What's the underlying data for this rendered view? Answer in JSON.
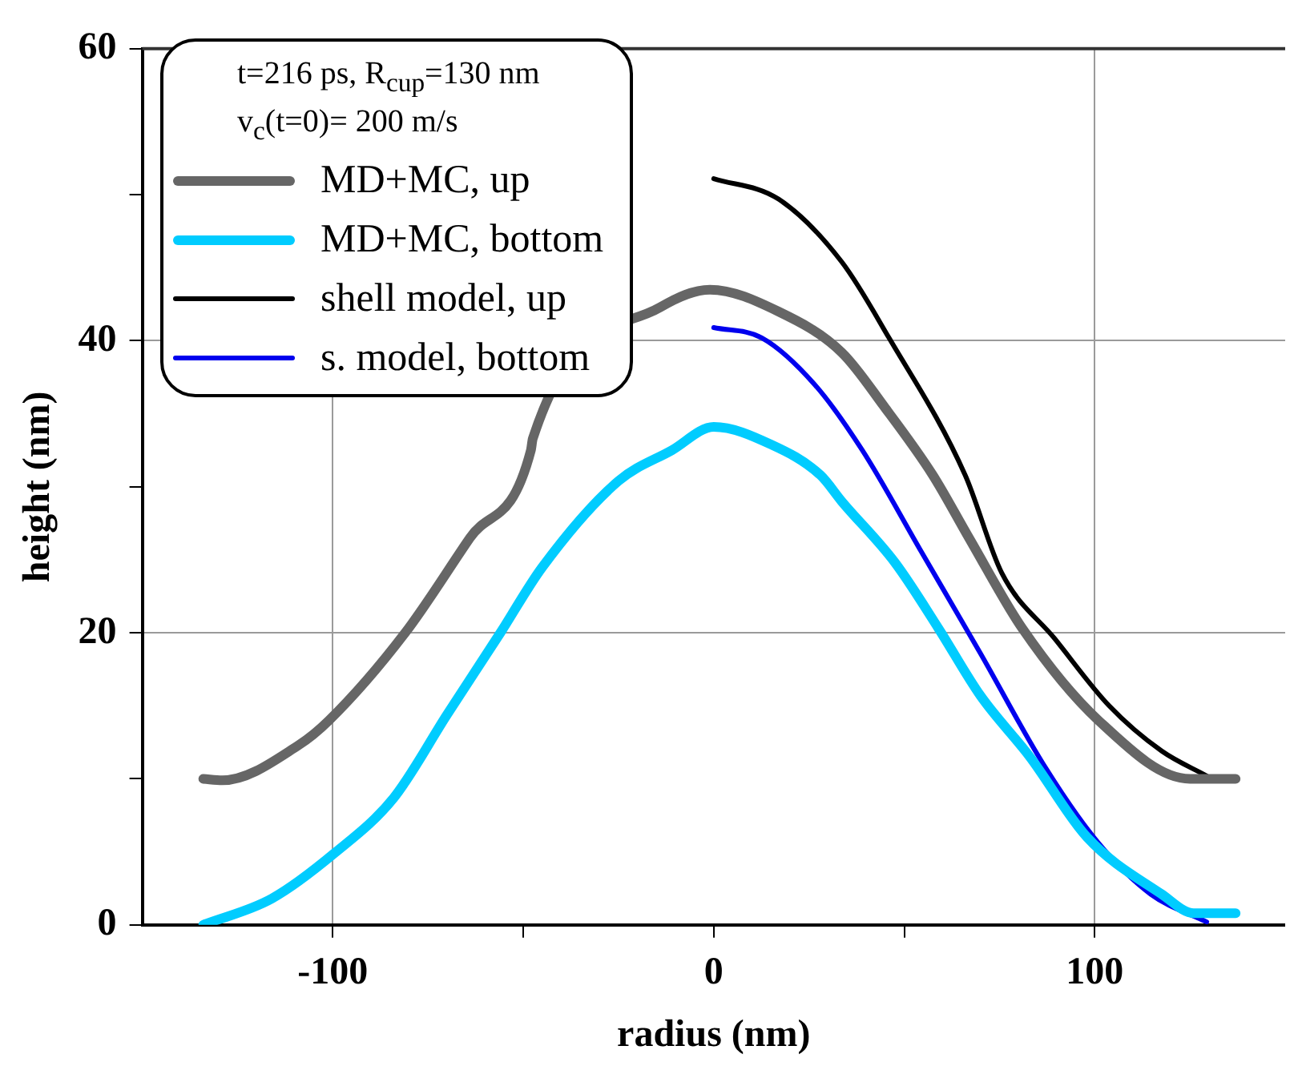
{
  "chart_data": {
    "type": "line",
    "xlabel": "radius (nm)",
    "ylabel": "height (nm)",
    "annotations": [
      "t=216 ps, R$_{cup}$=130 nm",
      "v$_{c}$(t=0)= 200 m/s"
    ],
    "xlim": [
      -150,
      150
    ],
    "ylim": [
      0,
      60
    ],
    "xticks": [
      -100,
      {
        "value": -50,
        "label": null
      },
      0,
      {
        "value": 50,
        "label": null
      },
      100
    ],
    "yticks": [
      0,
      {
        "value": 10,
        "label": null
      },
      20,
      {
        "value": 30,
        "label": null
      },
      40,
      {
        "value": 50,
        "label": null
      },
      60
    ],
    "grid": true,
    "legend": "top left",
    "marker": "none",
    "line_style": "solid",
    "series": [
      {
        "name": "MD+MC, up",
        "color": "#666666",
        "x": [
          -134,
          -129,
          -109,
          -101,
          -81,
          -64,
          -48,
          -47.5,
          -14,
          -1,
          17,
          33.6,
          45,
          57.5,
          67,
          81,
          101,
          125,
          137
        ],
        "values": [
          10.0,
          9.9,
          12.3,
          14.0,
          20,
          26.5,
          32.5,
          33.3,
          42.3,
          43.5,
          42,
          39.2,
          35.4,
          30.8,
          26.5,
          20.3,
          14,
          10,
          10
        ]
      },
      {
        "name": "MD+MC, bottom",
        "color": "#00ccff",
        "x": [
          -134,
          -116,
          -99.6,
          -84,
          -70,
          -56,
          -45,
          -25,
          -11,
          0,
          15,
          28,
          33.6,
          47.6,
          59,
          70,
          83,
          98,
          117.6,
          126,
          137
        ],
        "values": [
          0,
          1.8,
          4.9,
          8.7,
          14.4,
          20,
          24.5,
          30.4,
          32.5,
          34.1,
          32.9,
          30.8,
          29,
          24.8,
          20.3,
          15.7,
          11.5,
          6,
          2.1,
          0.8,
          0.8
        ]
      },
      {
        "name": "shell model, up",
        "color": "#000000",
        "x": [
          0,
          17,
          33.6,
          46,
          66,
          75.6,
          89.5,
          103.8,
          117.6,
          129.4
        ],
        "values": [
          51.1,
          49.7,
          45.4,
          40.2,
          30.8,
          24.1,
          19.6,
          15,
          11.9,
          10.2
        ]
      },
      {
        "name": "s. model, bottom",
        "color": "#0000ee",
        "x": [
          0,
          12.6,
          26.5,
          39,
          54.6,
          70,
          87,
          101,
          114.7,
          129.4
        ],
        "values": [
          40.9,
          40.2,
          37,
          32.5,
          25.5,
          18.6,
          10.8,
          5.6,
          2.1,
          0.2
        ]
      }
    ]
  }
}
